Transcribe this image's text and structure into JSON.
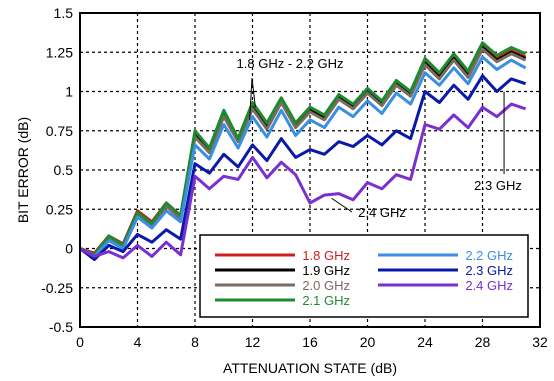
{
  "chart_data": {
    "type": "line",
    "xlabel": "ATTENUATION STATE (dB)",
    "ylabel": "BIT ERROR (dB)",
    "xlim": [
      0,
      32
    ],
    "ylim": [
      -0.5,
      1.5
    ],
    "x_ticks": [
      "0",
      "4",
      "8",
      "12",
      "16",
      "20",
      "24",
      "28",
      "32"
    ],
    "y_ticks": [
      "-0.5",
      "-0.25",
      "0",
      "0.25",
      "0.5",
      "0.75",
      "1",
      "1.25",
      "1.5"
    ],
    "grid": true,
    "legend_position": "bottom-right",
    "annotations": [
      {
        "text": "1.8 GHz - 2.2 GHz",
        "x": 11.8,
        "y": 0.75
      },
      {
        "text": "2.3 GHz",
        "x": 29.5,
        "y": 0.72
      },
      {
        "text": "2.4 GHz",
        "x": 17.5,
        "y": 0.32
      }
    ],
    "x": [
      0,
      1,
      2,
      3,
      4,
      5,
      6,
      7,
      8,
      9,
      10,
      11,
      12,
      13,
      14,
      15,
      16,
      17,
      18,
      19,
      20,
      21,
      22,
      23,
      24,
      25,
      26,
      27,
      28,
      29,
      30,
      31
    ],
    "series": [
      {
        "name": "1.8 GHz",
        "color": "#cc2020",
        "values": [
          0.0,
          -0.03,
          0.08,
          0.03,
          0.24,
          0.17,
          0.29,
          0.21,
          0.74,
          0.63,
          0.86,
          0.7,
          0.92,
          0.79,
          0.95,
          0.79,
          0.89,
          0.84,
          0.97,
          0.91,
          1.01,
          0.93,
          1.06,
          0.99,
          1.19,
          1.1,
          1.22,
          1.11,
          1.29,
          1.21,
          1.26,
          1.22
        ]
      },
      {
        "name": "1.9 GHz",
        "color": "#000000",
        "values": [
          0.0,
          -0.04,
          0.07,
          0.02,
          0.23,
          0.16,
          0.28,
          0.2,
          0.72,
          0.62,
          0.85,
          0.69,
          0.9,
          0.77,
          0.94,
          0.78,
          0.88,
          0.83,
          0.96,
          0.9,
          1.0,
          0.92,
          1.05,
          0.98,
          1.18,
          1.09,
          1.21,
          1.1,
          1.28,
          1.2,
          1.25,
          1.21
        ]
      },
      {
        "name": "2.0 GHz",
        "color": "#7a6a60",
        "values": [
          0.0,
          -0.04,
          0.07,
          0.02,
          0.22,
          0.15,
          0.27,
          0.19,
          0.71,
          0.61,
          0.84,
          0.68,
          0.89,
          0.76,
          0.93,
          0.77,
          0.87,
          0.82,
          0.95,
          0.89,
          0.99,
          0.91,
          1.04,
          0.97,
          1.17,
          1.08,
          1.2,
          1.09,
          1.27,
          1.19,
          1.24,
          1.2
        ]
      },
      {
        "name": "2.1 GHz",
        "color": "#1e8a2e",
        "values": [
          0.0,
          -0.04,
          0.08,
          0.02,
          0.23,
          0.16,
          0.29,
          0.21,
          0.75,
          0.64,
          0.88,
          0.7,
          0.93,
          0.8,
          0.96,
          0.8,
          0.9,
          0.85,
          0.98,
          0.92,
          1.02,
          0.94,
          1.07,
          1.0,
          1.21,
          1.12,
          1.24,
          1.13,
          1.31,
          1.23,
          1.28,
          1.24
        ]
      },
      {
        "name": "2.2 GHz",
        "color": "#3a8fe0",
        "values": [
          0.0,
          -0.05,
          0.05,
          0.0,
          0.2,
          0.13,
          0.24,
          0.17,
          0.66,
          0.57,
          0.79,
          0.64,
          0.84,
          0.71,
          0.88,
          0.72,
          0.82,
          0.77,
          0.9,
          0.84,
          0.94,
          0.86,
          0.99,
          0.92,
          1.12,
          1.04,
          1.15,
          1.05,
          1.22,
          1.14,
          1.2,
          1.15
        ]
      },
      {
        "name": "2.3 GHz",
        "color": "#0a1aa8",
        "values": [
          0.0,
          -0.07,
          0.02,
          -0.02,
          0.09,
          0.04,
          0.12,
          0.06,
          0.54,
          0.48,
          0.6,
          0.52,
          0.66,
          0.56,
          0.7,
          0.58,
          0.63,
          0.6,
          0.68,
          0.65,
          0.72,
          0.66,
          0.75,
          0.7,
          1.0,
          0.93,
          1.04,
          0.95,
          1.1,
          1.0,
          1.08,
          1.05
        ]
      },
      {
        "name": "2.4 GHz",
        "color": "#7b2fd0",
        "values": [
          0.0,
          -0.05,
          -0.02,
          -0.06,
          0.02,
          -0.05,
          0.04,
          -0.04,
          0.46,
          0.38,
          0.46,
          0.44,
          0.58,
          0.45,
          0.55,
          0.47,
          0.29,
          0.34,
          0.35,
          0.31,
          0.42,
          0.38,
          0.47,
          0.44,
          0.79,
          0.76,
          0.85,
          0.77,
          0.9,
          0.84,
          0.92,
          0.89
        ]
      }
    ]
  }
}
